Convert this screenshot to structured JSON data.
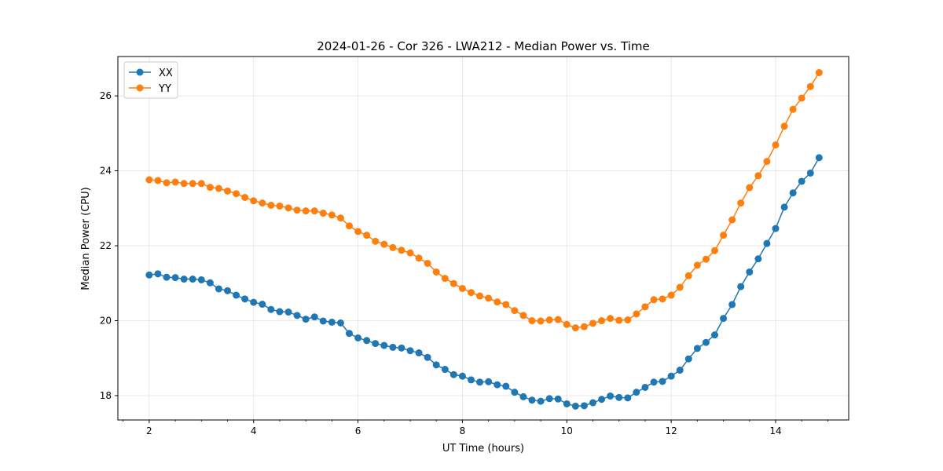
{
  "chart_data": {
    "type": "line",
    "title": "2024-01-26 - Cor 326 - LWA212 - Median Power vs. Time",
    "xlabel": "UT Time (hours)",
    "ylabel": "Median Power (CPU)",
    "xlim": [
      1.4,
      15.4
    ],
    "ylim": [
      17.35,
      27.05
    ],
    "xticks": [
      2,
      4,
      6,
      8,
      10,
      12,
      14
    ],
    "yticks": [
      18,
      20,
      22,
      24,
      26
    ],
    "x_minor_step": 0.5,
    "grid": true,
    "legend_position": "upper-left",
    "x": [
      2.0,
      2.167,
      2.333,
      2.5,
      2.667,
      2.833,
      3.0,
      3.167,
      3.333,
      3.5,
      3.667,
      3.833,
      4.0,
      4.167,
      4.333,
      4.5,
      4.667,
      4.833,
      5.0,
      5.167,
      5.333,
      5.5,
      5.667,
      5.833,
      6.0,
      6.167,
      6.333,
      6.5,
      6.667,
      6.833,
      7.0,
      7.167,
      7.333,
      7.5,
      7.667,
      7.833,
      8.0,
      8.167,
      8.333,
      8.5,
      8.667,
      8.833,
      9.0,
      9.167,
      9.333,
      9.5,
      9.667,
      9.833,
      10.0,
      10.167,
      10.333,
      10.5,
      10.667,
      10.833,
      11.0,
      11.167,
      11.333,
      11.5,
      11.667,
      11.833,
      12.0,
      12.167,
      12.333,
      12.5,
      12.667,
      12.833,
      13.0,
      13.167,
      13.333,
      13.5,
      13.667,
      13.833,
      14.0,
      14.167,
      14.333,
      14.5,
      14.667,
      14.833
    ],
    "series": [
      {
        "name": "XX",
        "color": "#1f77b4",
        "values": [
          21.22,
          21.25,
          21.16,
          21.15,
          21.11,
          21.11,
          21.09,
          21.01,
          20.85,
          20.8,
          20.68,
          20.58,
          20.49,
          20.44,
          20.3,
          20.24,
          20.23,
          20.14,
          20.04,
          20.1,
          19.99,
          19.96,
          19.94,
          19.66,
          19.54,
          19.47,
          19.39,
          19.34,
          19.29,
          19.27,
          19.2,
          19.14,
          19.02,
          18.82,
          18.7,
          18.56,
          18.52,
          18.42,
          18.36,
          18.37,
          18.29,
          18.25,
          18.09,
          17.97,
          17.88,
          17.85,
          17.92,
          17.91,
          17.78,
          17.72,
          17.73,
          17.81,
          17.9,
          17.99,
          17.95,
          17.94,
          18.09,
          18.22,
          18.36,
          18.38,
          18.52,
          18.68,
          18.98,
          19.26,
          19.42,
          19.62,
          20.06,
          20.43,
          20.91,
          21.3,
          21.65,
          22.06,
          22.46,
          23.03,
          23.41,
          23.72,
          23.94,
          24.35
        ]
      },
      {
        "name": "YY",
        "color": "#ff7f0e",
        "values": [
          23.76,
          23.74,
          23.68,
          23.7,
          23.66,
          23.66,
          23.66,
          23.56,
          23.53,
          23.46,
          23.39,
          23.29,
          23.2,
          23.14,
          23.08,
          23.06,
          23.01,
          22.95,
          22.93,
          22.93,
          22.87,
          22.82,
          22.74,
          22.53,
          22.38,
          22.28,
          22.12,
          22.04,
          21.95,
          21.88,
          21.81,
          21.67,
          21.53,
          21.3,
          21.13,
          20.99,
          20.86,
          20.75,
          20.66,
          20.6,
          20.5,
          20.43,
          20.27,
          20.14,
          20.0,
          19.99,
          20.02,
          20.03,
          19.9,
          19.81,
          19.84,
          19.93,
          20.0,
          20.06,
          20.01,
          20.02,
          20.18,
          20.37,
          20.56,
          20.58,
          20.68,
          20.89,
          21.2,
          21.48,
          21.64,
          21.87,
          22.28,
          22.69,
          23.14,
          23.55,
          23.87,
          24.25,
          24.69,
          25.19,
          25.64,
          25.94,
          26.25,
          26.62
        ]
      }
    ]
  }
}
